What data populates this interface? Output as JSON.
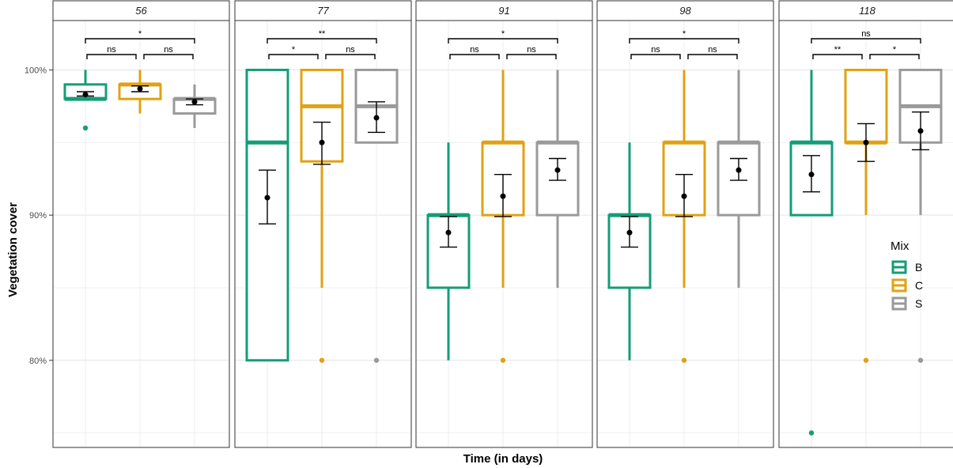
{
  "chart_data": {
    "type": "boxplot",
    "xlabel": "Time (in days)",
    "ylabel": "Vegetation cover",
    "ylim": [
      0.74,
      1.034
    ],
    "yticks": [
      0.8,
      0.9,
      1.0
    ],
    "ytick_labels": [
      "80%",
      "90%",
      "100%"
    ],
    "grid": true,
    "legend": {
      "title": "Mix",
      "placement": "right-inside",
      "entries": [
        {
          "name": "B",
          "color": "#139e77"
        },
        {
          "name": "C",
          "color": "#e0a213"
        },
        {
          "name": "S",
          "color": "#9a9a9a"
        }
      ]
    },
    "panels": [
      {
        "label": "56",
        "boxes": [
          {
            "mix": "B",
            "whisker_low": 0.98,
            "q1": 0.98,
            "median": 0.98,
            "q3": 0.99,
            "whisker_high": 1.0,
            "mean": 0.983,
            "mean_ci": [
              0.982,
              0.985
            ],
            "outliers": [
              0.96
            ]
          },
          {
            "mix": "C",
            "whisker_low": 0.97,
            "q1": 0.98,
            "median": 0.99,
            "q3": 0.99,
            "whisker_high": 1.0,
            "mean": 0.987,
            "mean_ci": [
              0.985,
              0.989
            ],
            "outliers": []
          },
          {
            "mix": "S",
            "whisker_low": 0.96,
            "q1": 0.97,
            "median": 0.98,
            "q3": 0.98,
            "whisker_high": 0.99,
            "mean": 0.978,
            "mean_ci": [
              0.976,
              0.98
            ],
            "outliers": []
          }
        ],
        "comparisons": [
          {
            "from": 0,
            "to": 2,
            "label": "*",
            "level": 2
          },
          {
            "from": 0,
            "to": 1,
            "label": "ns",
            "level": 1
          },
          {
            "from": 1,
            "to": 2,
            "label": "ns",
            "level": 1
          }
        ]
      },
      {
        "label": "77",
        "boxes": [
          {
            "mix": "B",
            "whisker_low": 0.8,
            "q1": 0.8,
            "median": 0.95,
            "q3": 1.0,
            "whisker_high": 1.0,
            "mean": 0.912,
            "mean_ci": [
              0.894,
              0.931
            ],
            "outliers": []
          },
          {
            "mix": "C",
            "whisker_low": 0.85,
            "q1": 0.937,
            "median": 0.975,
            "q3": 1.0,
            "whisker_high": 1.0,
            "mean": 0.95,
            "mean_ci": [
              0.935,
              0.964
            ],
            "outliers": [
              0.8
            ]
          },
          {
            "mix": "S",
            "whisker_low": 0.95,
            "q1": 0.95,
            "median": 0.975,
            "q3": 1.0,
            "whisker_high": 1.0,
            "mean": 0.967,
            "mean_ci": [
              0.957,
              0.978
            ],
            "outliers": [
              0.8
            ]
          }
        ],
        "comparisons": [
          {
            "from": 0,
            "to": 2,
            "label": "**",
            "level": 2
          },
          {
            "from": 0,
            "to": 1,
            "label": "*",
            "level": 1
          },
          {
            "from": 1,
            "to": 2,
            "label": "ns",
            "level": 1
          }
        ]
      },
      {
        "label": "91",
        "boxes": [
          {
            "mix": "B",
            "whisker_low": 0.8,
            "q1": 0.85,
            "median": 0.9,
            "q3": 0.9,
            "whisker_high": 0.95,
            "mean": 0.888,
            "mean_ci": [
              0.878,
              0.899
            ],
            "outliers": []
          },
          {
            "mix": "C",
            "whisker_low": 0.85,
            "q1": 0.9,
            "median": 0.95,
            "q3": 0.95,
            "whisker_high": 1.0,
            "mean": 0.913,
            "mean_ci": [
              0.899,
              0.928
            ],
            "outliers": [
              0.8
            ]
          },
          {
            "mix": "S",
            "whisker_low": 0.85,
            "q1": 0.9,
            "median": 0.95,
            "q3": 0.95,
            "whisker_high": 1.0,
            "mean": 0.931,
            "mean_ci": [
              0.924,
              0.939
            ],
            "outliers": []
          }
        ],
        "comparisons": [
          {
            "from": 0,
            "to": 2,
            "label": "*",
            "level": 2
          },
          {
            "from": 0,
            "to": 1,
            "label": "ns",
            "level": 1
          },
          {
            "from": 1,
            "to": 2,
            "label": "ns",
            "level": 1
          }
        ]
      },
      {
        "label": "98",
        "boxes": [
          {
            "mix": "B",
            "whisker_low": 0.8,
            "q1": 0.85,
            "median": 0.9,
            "q3": 0.9,
            "whisker_high": 0.95,
            "mean": 0.888,
            "mean_ci": [
              0.878,
              0.899
            ],
            "outliers": []
          },
          {
            "mix": "C",
            "whisker_low": 0.85,
            "q1": 0.9,
            "median": 0.95,
            "q3": 0.95,
            "whisker_high": 1.0,
            "mean": 0.913,
            "mean_ci": [
              0.899,
              0.928
            ],
            "outliers": [
              0.8
            ]
          },
          {
            "mix": "S",
            "whisker_low": 0.85,
            "q1": 0.9,
            "median": 0.95,
            "q3": 0.95,
            "whisker_high": 1.0,
            "mean": 0.931,
            "mean_ci": [
              0.924,
              0.939
            ],
            "outliers": []
          }
        ],
        "comparisons": [
          {
            "from": 0,
            "to": 2,
            "label": "*",
            "level": 2
          },
          {
            "from": 0,
            "to": 1,
            "label": "ns",
            "level": 1
          },
          {
            "from": 1,
            "to": 2,
            "label": "ns",
            "level": 1
          }
        ]
      },
      {
        "label": "118",
        "boxes": [
          {
            "mix": "B",
            "whisker_low": 0.9,
            "q1": 0.9,
            "median": 0.95,
            "q3": 0.95,
            "whisker_high": 1.0,
            "mean": 0.928,
            "mean_ci": [
              0.916,
              0.941
            ],
            "outliers": [
              0.75
            ]
          },
          {
            "mix": "C",
            "whisker_low": 0.9,
            "q1": 0.95,
            "median": 0.95,
            "q3": 1.0,
            "whisker_high": 1.0,
            "mean": 0.95,
            "mean_ci": [
              0.937,
              0.963
            ],
            "outliers": [
              0.8
            ]
          },
          {
            "mix": "S",
            "whisker_low": 0.9,
            "q1": 0.95,
            "median": 0.975,
            "q3": 1.0,
            "whisker_high": 1.0,
            "mean": 0.958,
            "mean_ci": [
              0.945,
              0.971
            ],
            "outliers": [
              0.8
            ]
          }
        ],
        "comparisons": [
          {
            "from": 0,
            "to": 2,
            "label": "ns",
            "level": 2
          },
          {
            "from": 0,
            "to": 1,
            "label": "**",
            "level": 1
          },
          {
            "from": 1,
            "to": 2,
            "label": "*",
            "level": 1
          }
        ]
      }
    ]
  }
}
